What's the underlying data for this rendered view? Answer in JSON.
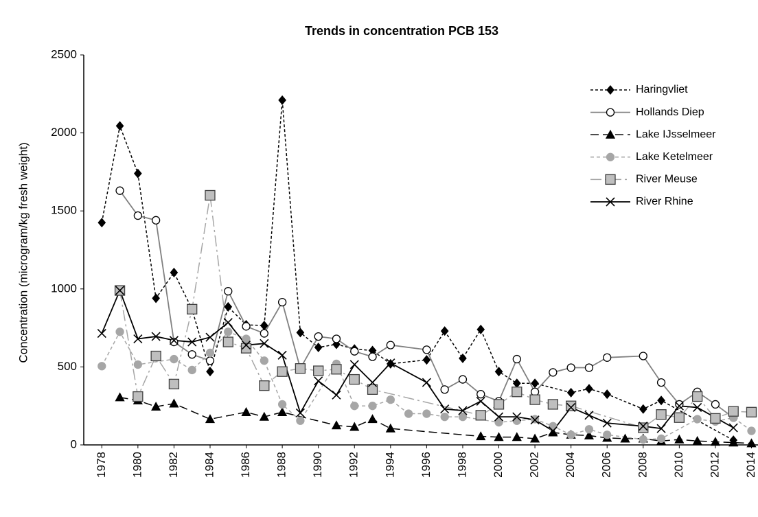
{
  "chart_data": {
    "type": "line",
    "title": "Trends in concentration PCB 153",
    "y_label": "Concentration  (microgram/kg fresh weight)",
    "xlim": [
      1977,
      2014.4
    ],
    "xticks": [
      1978,
      1980,
      1982,
      1984,
      1986,
      1988,
      1990,
      1992,
      1994,
      1996,
      1998,
      2000,
      2002,
      2004,
      2006,
      2008,
      2010,
      2012,
      2014
    ],
    "ylim": [
      0,
      2500
    ],
    "yticks": [
      0,
      500,
      1000,
      1500,
      2000,
      2500
    ],
    "legend": "upper right",
    "series": [
      {
        "name": "Haringvliet",
        "color": "#000000",
        "x": [
          1978,
          1979,
          1980,
          1981,
          1982,
          1983,
          1984,
          1985,
          1986,
          1987,
          1988,
          1989,
          1990,
          1991,
          1992,
          1993,
          1994,
          1996,
          1997,
          1998,
          1999,
          2000,
          2001,
          2002,
          2004,
          2005,
          2006,
          2008,
          2009,
          2013
        ],
        "values": [
          1425,
          2045,
          1740,
          940,
          1105,
          870,
          470,
          885,
          770,
          765,
          2210,
          720,
          625,
          645,
          615,
          605,
          520,
          545,
          730,
          555,
          740,
          470,
          395,
          395,
          335,
          360,
          325,
          230,
          285,
          30
        ]
      },
      {
        "name": "Hollands Diep",
        "color": "#808080",
        "x": [
          1979,
          1980,
          1981,
          1982,
          1983,
          1984,
          1985,
          1986,
          1987,
          1988,
          1989,
          1990,
          1991,
          1992,
          1993,
          1994,
          1996,
          1997,
          1998,
          1999,
          2000,
          2001,
          2002,
          2003,
          2004,
          2005,
          2006,
          2008,
          2009,
          2010,
          2011,
          2012,
          2013
        ],
        "values": [
          1630,
          1470,
          1440,
          660,
          580,
          540,
          985,
          760,
          715,
          915,
          490,
          695,
          680,
          600,
          565,
          640,
          610,
          355,
          420,
          325,
          280,
          550,
          340,
          465,
          495,
          495,
          560,
          570,
          400,
          260,
          340,
          260,
          175
        ]
      },
      {
        "name": "Lake IJsselmeer",
        "color": "#000000",
        "x": [
          1979,
          1980,
          1981,
          1982,
          1984,
          1986,
          1987,
          1988,
          1991,
          1992,
          1993,
          1994,
          1999,
          2000,
          2001,
          2002,
          2003,
          2004,
          2005,
          2006,
          2007,
          2008,
          2009,
          2010,
          2011,
          2012,
          2013,
          2014
        ],
        "values": [
          305,
          285,
          245,
          265,
          165,
          210,
          180,
          210,
          125,
          115,
          165,
          105,
          55,
          50,
          50,
          40,
          80,
          65,
          60,
          45,
          40,
          40,
          25,
          35,
          25,
          20,
          15,
          10
        ]
      },
      {
        "name": "Lake Ketelmeer",
        "color": "#a6a6a6",
        "x": [
          1978,
          1979,
          1980,
          1982,
          1983,
          1984,
          1985,
          1986,
          1987,
          1988,
          1989,
          1991,
          1992,
          1993,
          1994,
          1995,
          1996,
          1997,
          1998,
          2000,
          2001,
          2002,
          2003,
          2004,
          2005,
          2006,
          2008,
          2009,
          2011,
          2012,
          2013,
          2014
        ],
        "values": [
          505,
          725,
          515,
          550,
          480,
          590,
          725,
          680,
          540,
          260,
          155,
          520,
          250,
          250,
          290,
          200,
          200,
          180,
          180,
          145,
          155,
          165,
          120,
          65,
          100,
          65,
          35,
          40,
          165,
          150,
          175,
          90
        ]
      },
      {
        "name": "River Meuse",
        "color": "#a6a6a6",
        "x": [
          1979,
          1980,
          1981,
          1982,
          1983,
          1984,
          1985,
          1986,
          1987,
          1988,
          1989,
          1990,
          1991,
          1992,
          1993,
          1999,
          2000,
          2001,
          2002,
          2003,
          2004,
          2008,
          2009,
          2010,
          2011,
          2012,
          2013,
          2014
        ],
        "values": [
          990,
          310,
          570,
          390,
          870,
          1600,
          660,
          620,
          380,
          470,
          490,
          475,
          485,
          420,
          355,
          190,
          260,
          340,
          290,
          260,
          250,
          110,
          195,
          175,
          310,
          170,
          215,
          210
        ]
      },
      {
        "name": "River Rhine",
        "color": "#000000",
        "x": [
          1978,
          1979,
          1980,
          1981,
          1982,
          1983,
          1984,
          1985,
          1986,
          1987,
          1988,
          1989,
          1990,
          1991,
          1992,
          1993,
          1994,
          1996,
          1997,
          1998,
          1999,
          2000,
          2001,
          2002,
          2003,
          2004,
          2005,
          2006,
          2008,
          2009,
          2010,
          2011,
          2013
        ],
        "values": [
          715,
          990,
          680,
          695,
          670,
          660,
          690,
          785,
          640,
          650,
          575,
          205,
          410,
          320,
          515,
          400,
          525,
          400,
          230,
          220,
          280,
          180,
          180,
          160,
          90,
          240,
          190,
          140,
          120,
          105,
          250,
          240,
          110
        ]
      }
    ]
  }
}
